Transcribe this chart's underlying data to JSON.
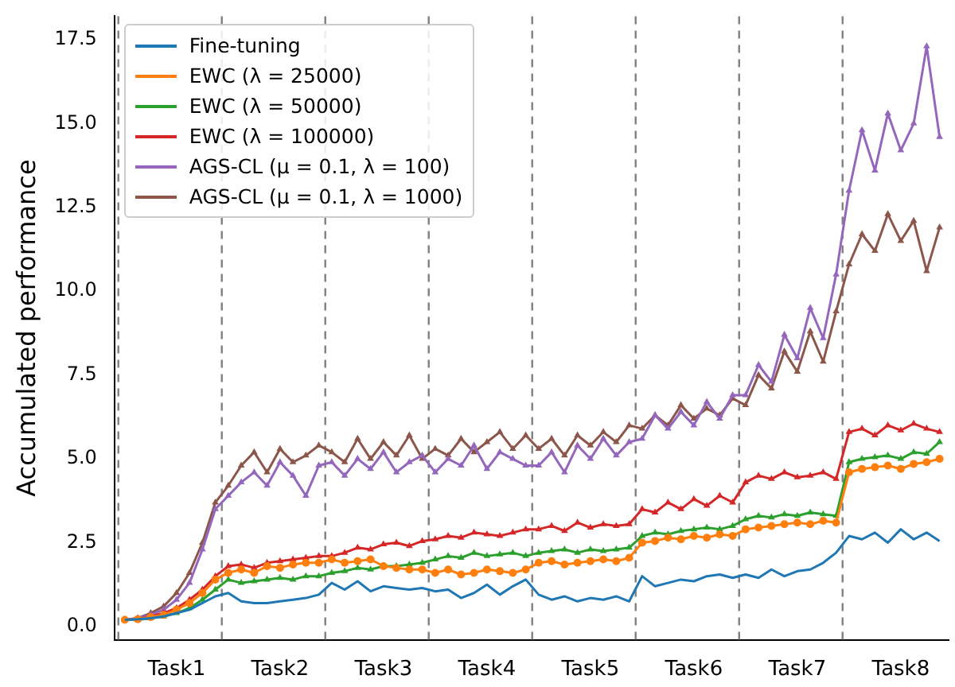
{
  "chart_data": {
    "type": "line",
    "ylabel": "Accumulated performance",
    "legend": "top left",
    "grid": false,
    "categories": [
      null,
      null,
      null,
      null,
      "Task1",
      null,
      null,
      null,
      null,
      null,
      null,
      null,
      "Task2",
      null,
      null,
      null,
      null,
      null,
      null,
      null,
      "Task3",
      null,
      null,
      null,
      null,
      null,
      null,
      null,
      "Task4",
      null,
      null,
      null,
      null,
      null,
      null,
      null,
      "Task5",
      null,
      null,
      null,
      null,
      null,
      null,
      null,
      "Task6",
      null,
      null,
      null,
      null,
      null,
      null,
      null,
      "Task7",
      null,
      null,
      null,
      null,
      null,
      null,
      null,
      "Task8",
      null,
      null,
      null
    ],
    "ylim": [
      -0.4,
      18.2
    ],
    "yticks": [
      {
        "value": 0,
        "label": "0.0"
      },
      {
        "value": 2.5,
        "label": "2.5"
      },
      {
        "value": 5,
        "label": "5.0"
      },
      {
        "value": 7.5,
        "label": "7.5"
      },
      {
        "value": 10,
        "label": "10.0"
      },
      {
        "value": 12.5,
        "label": "12.5"
      },
      {
        "value": 15,
        "label": "15.0"
      },
      {
        "value": 17.5,
        "label": "17.5"
      }
    ],
    "series": [
      {
        "name": "Fine-tuning",
        "color": "#1f77b4",
        "marker": "none",
        "values": [
          0.2,
          0.22,
          0.25,
          0.3,
          0.4,
          0.5,
          0.7,
          0.9,
          1.0,
          0.75,
          0.7,
          0.7,
          0.75,
          0.8,
          0.85,
          0.95,
          1.3,
          1.1,
          1.35,
          1.05,
          1.2,
          1.15,
          1.1,
          1.15,
          1.05,
          1.1,
          0.85,
          1.0,
          1.25,
          0.95,
          1.2,
          1.4,
          0.95,
          0.8,
          0.9,
          0.75,
          0.85,
          0.8,
          0.9,
          0.75,
          1.5,
          1.2,
          1.3,
          1.4,
          1.35,
          1.5,
          1.55,
          1.45,
          1.55,
          1.45,
          1.7,
          1.5,
          1.65,
          1.7,
          1.9,
          2.2,
          2.7,
          2.6,
          2.8,
          2.5,
          2.9,
          2.6,
          2.8,
          2.55
        ]
      },
      {
        "name": "EWC (λ = 25000)",
        "color": "#ff7f0e",
        "marker": "circle",
        "values": [
          0.2,
          0.22,
          0.28,
          0.35,
          0.5,
          0.7,
          1.0,
          1.4,
          1.6,
          1.7,
          1.6,
          1.8,
          1.75,
          1.85,
          1.9,
          1.9,
          2.0,
          1.9,
          1.95,
          2.0,
          1.8,
          1.75,
          1.7,
          1.7,
          1.6,
          1.7,
          1.55,
          1.6,
          1.7,
          1.65,
          1.6,
          1.7,
          1.9,
          1.95,
          1.85,
          1.9,
          1.95,
          2.0,
          1.95,
          2.05,
          2.5,
          2.55,
          2.65,
          2.6,
          2.7,
          2.65,
          2.75,
          2.7,
          2.9,
          2.95,
          3.0,
          3.05,
          3.1,
          3.05,
          3.15,
          3.1,
          4.6,
          4.7,
          4.75,
          4.8,
          4.7,
          4.85,
          4.9,
          5.0
        ]
      },
      {
        "name": "EWC (λ = 50000)",
        "color": "#2ca02c",
        "marker": "triangle",
        "values": [
          0.2,
          0.2,
          0.25,
          0.3,
          0.4,
          0.55,
          0.8,
          1.1,
          1.4,
          1.3,
          1.35,
          1.4,
          1.45,
          1.4,
          1.5,
          1.5,
          1.6,
          1.65,
          1.75,
          1.7,
          1.8,
          1.8,
          1.85,
          1.9,
          2.0,
          2.1,
          2.05,
          2.2,
          2.1,
          2.15,
          2.2,
          2.1,
          2.2,
          2.25,
          2.3,
          2.2,
          2.3,
          2.25,
          2.3,
          2.35,
          2.7,
          2.8,
          2.75,
          2.85,
          2.9,
          2.95,
          2.9,
          3.0,
          3.2,
          3.3,
          3.25,
          3.35,
          3.3,
          3.4,
          3.35,
          3.3,
          4.9,
          5.0,
          5.05,
          5.1,
          5.0,
          5.2,
          5.15,
          5.5
        ]
      },
      {
        "name": "EWC (λ = 100000)",
        "color": "#d62728",
        "marker": "triangle",
        "values": [
          0.2,
          0.22,
          0.3,
          0.4,
          0.55,
          0.8,
          1.1,
          1.5,
          1.8,
          1.85,
          1.75,
          1.9,
          1.95,
          2.0,
          2.05,
          2.1,
          2.1,
          2.2,
          2.35,
          2.3,
          2.45,
          2.5,
          2.4,
          2.55,
          2.6,
          2.7,
          2.65,
          2.8,
          2.75,
          2.7,
          2.8,
          2.9,
          2.9,
          3.0,
          2.85,
          3.1,
          2.95,
          3.05,
          3.0,
          3.05,
          3.5,
          3.4,
          3.7,
          3.5,
          3.8,
          3.6,
          3.9,
          3.7,
          4.3,
          4.5,
          4.4,
          4.6,
          4.45,
          4.5,
          4.6,
          4.4,
          5.8,
          5.9,
          5.7,
          6.0,
          5.85,
          6.05,
          5.9,
          5.8
        ]
      },
      {
        "name": "AGS-CL (μ = 0.1, λ = 100)",
        "color": "#9467bd",
        "marker": "triangle",
        "values": [
          0.2,
          0.25,
          0.35,
          0.5,
          0.8,
          1.3,
          2.3,
          3.5,
          3.9,
          4.3,
          4.6,
          4.2,
          4.9,
          4.5,
          3.9,
          4.8,
          4.9,
          4.5,
          5.0,
          4.7,
          5.2,
          4.6,
          4.9,
          5.1,
          4.6,
          5.0,
          4.8,
          5.4,
          4.7,
          5.2,
          5.0,
          4.8,
          4.8,
          5.2,
          4.6,
          5.4,
          5.0,
          5.6,
          5.1,
          5.5,
          5.6,
          6.3,
          5.9,
          6.4,
          6.0,
          6.7,
          6.2,
          6.9,
          6.9,
          7.8,
          7.3,
          8.7,
          8.0,
          9.5,
          8.6,
          10.5,
          13.0,
          14.8,
          13.6,
          15.3,
          14.2,
          15.0,
          17.3,
          14.6
        ]
      },
      {
        "name": "AGS-CL (μ = 0.1, λ = 1000)",
        "color": "#8c564b",
        "marker": "triangle",
        "values": [
          0.2,
          0.25,
          0.4,
          0.6,
          1.0,
          1.6,
          2.5,
          3.7,
          4.2,
          4.8,
          5.2,
          4.6,
          5.3,
          4.9,
          5.1,
          5.4,
          5.2,
          4.9,
          5.6,
          5.0,
          5.5,
          5.1,
          5.7,
          5.0,
          5.3,
          5.1,
          5.6,
          5.2,
          5.5,
          5.8,
          5.3,
          5.7,
          5.3,
          5.6,
          5.1,
          5.7,
          5.4,
          5.8,
          5.5,
          6.0,
          5.9,
          6.3,
          6.0,
          6.6,
          6.2,
          6.5,
          6.3,
          6.8,
          6.6,
          7.5,
          7.1,
          8.2,
          7.6,
          8.8,
          7.9,
          9.4,
          10.8,
          11.7,
          11.2,
          12.3,
          11.5,
          12.1,
          10.6,
          11.9
        ]
      }
    ]
  }
}
